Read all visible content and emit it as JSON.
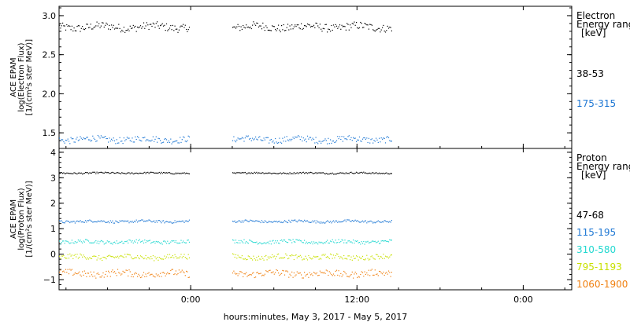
{
  "chart_data": [
    {
      "type": "scatter",
      "ylabel_lines": [
        "ACE EPAM",
        "log(Electron Flux)",
        "[1/(cm²s ster MeV)]"
      ],
      "legend_title_lines": [
        "Electron",
        "Energy ranges",
        "[keV]"
      ],
      "ylim": [
        1.3,
        3.12
      ],
      "yticks": [
        1.5,
        2.0,
        2.5,
        3.0
      ],
      "ytick_labels": [
        "1.5",
        "2.0",
        "2.5",
        "3.0"
      ],
      "segments": [
        [
          -9.5,
          -0.1
        ],
        [
          3.0,
          14.5
        ]
      ],
      "series": [
        {
          "name": "38-53",
          "color": "#000000",
          "level": 2.86,
          "noise": 0.05
        },
        {
          "name": "175-315",
          "color": "#1f78d4",
          "level": 1.42,
          "noise": 0.04
        }
      ]
    },
    {
      "type": "scatter",
      "ylabel_lines": [
        "ACE EPAM",
        "log(Proton Flux)",
        "[1/(cm²s ster MeV)]"
      ],
      "legend_title_lines": [
        "Proton",
        "Energy ranges",
        "[keV]"
      ],
      "ylim": [
        -1.4,
        4.15
      ],
      "yticks": [
        -1,
        0,
        1,
        2,
        3,
        4
      ],
      "ytick_labels": [
        "−1",
        "0",
        "1",
        "2",
        "3",
        "4"
      ],
      "segments": [
        [
          -9.5,
          -0.1
        ],
        [
          3.0,
          14.5
        ]
      ],
      "series": [
        {
          "name": "47-68",
          "color": "#000000",
          "level": 3.2,
          "noise": 0.03
        },
        {
          "name": "115-195",
          "color": "#1f78d4",
          "level": 1.3,
          "noise": 0.05
        },
        {
          "name": "310-580",
          "color": "#22d8d0",
          "level": 0.5,
          "noise": 0.07
        },
        {
          "name": "795-1193",
          "color": "#c8e000",
          "level": -0.1,
          "noise": 0.1
        },
        {
          "name": "1060-1900",
          "color": "#f08010",
          "level": -0.75,
          "noise": 0.13
        }
      ]
    }
  ],
  "x_axis": {
    "xlim": [
      -9.5,
      27.5
    ],
    "ticks": [
      0,
      12,
      24
    ],
    "tick_labels": [
      "0:00",
      "12:00",
      "0:00"
    ],
    "xlabel": "hours:minutes, May  3, 2017 - May  5, 2017"
  }
}
